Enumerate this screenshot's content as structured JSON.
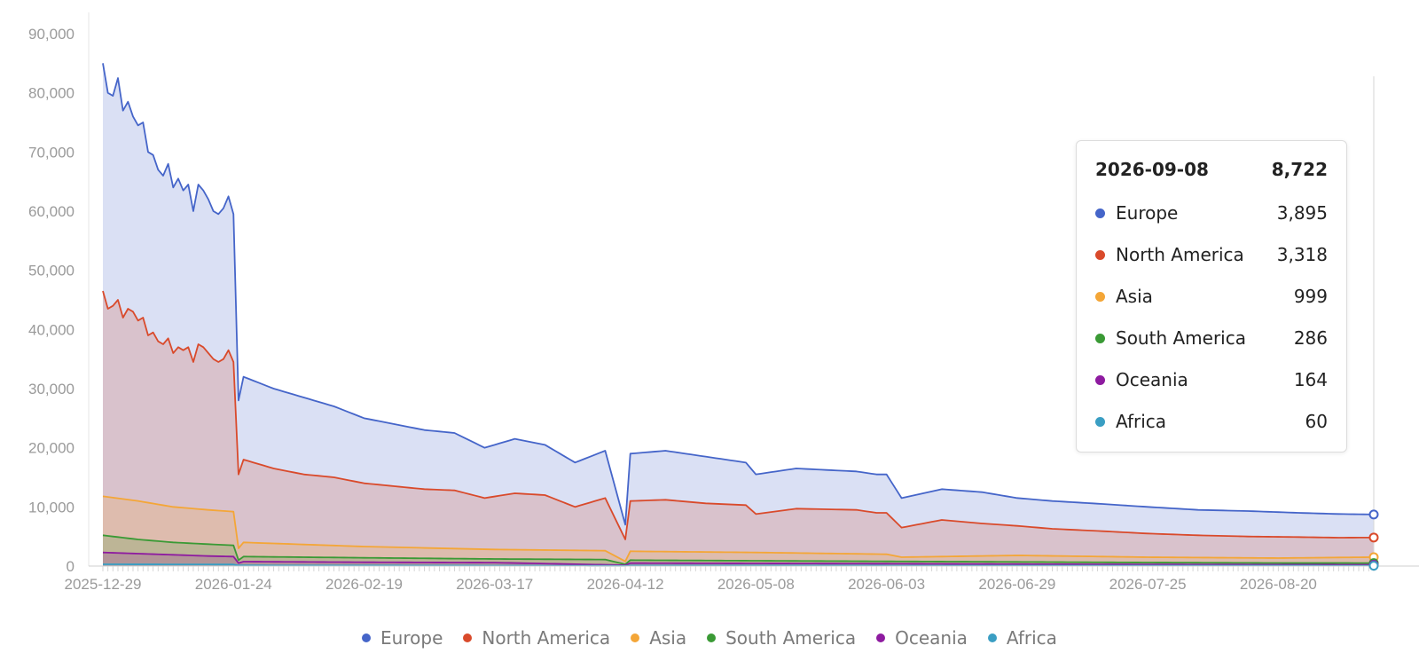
{
  "chart_data": {
    "type": "area",
    "stacked": true,
    "x_ticks": [
      "2025-12-29",
      "2026-01-24",
      "2026-02-19",
      "2026-03-17",
      "2026-04-12",
      "2026-05-08",
      "2026-06-03",
      "2026-06-29",
      "2026-07-25",
      "2026-08-20"
    ],
    "x_range": [
      "2025-12-29",
      "2026-09-08"
    ],
    "y_ticks": [
      "0",
      "10,000",
      "20,000",
      "30,000",
      "40,000",
      "50,000",
      "60,000",
      "70,000",
      "80,000",
      "90,000"
    ],
    "ylim": [
      0,
      90000
    ],
    "grid": false,
    "legend_position": "bottom",
    "series": [
      {
        "name": "Europe",
        "color": "#4565c9",
        "points": [
          [
            "2025-12-29",
            85000
          ],
          [
            "2025-12-30",
            80000
          ],
          [
            "2025-12-31",
            79500
          ],
          [
            "2026-01-01",
            82500
          ],
          [
            "2026-01-02",
            77000
          ],
          [
            "2026-01-03",
            78500
          ],
          [
            "2026-01-04",
            76000
          ],
          [
            "2026-01-05",
            74500
          ],
          [
            "2026-01-06",
            75000
          ],
          [
            "2026-01-07",
            70000
          ],
          [
            "2026-01-08",
            69500
          ],
          [
            "2026-01-09",
            67000
          ],
          [
            "2026-01-10",
            66000
          ],
          [
            "2026-01-11",
            68000
          ],
          [
            "2026-01-12",
            64000
          ],
          [
            "2026-01-13",
            65500
          ],
          [
            "2026-01-14",
            63500
          ],
          [
            "2026-01-15",
            64500
          ],
          [
            "2026-01-16",
            60000
          ],
          [
            "2026-01-17",
            64500
          ],
          [
            "2026-01-18",
            63500
          ],
          [
            "2026-01-19",
            62000
          ],
          [
            "2026-01-20",
            60000
          ],
          [
            "2026-01-21",
            59500
          ],
          [
            "2026-01-22",
            60500
          ],
          [
            "2026-01-23",
            62500
          ],
          [
            "2026-01-24",
            59500
          ],
          [
            "2026-01-25",
            28000
          ],
          [
            "2026-01-26",
            32000
          ],
          [
            "2026-02-01",
            30000
          ],
          [
            "2026-02-07",
            28500
          ],
          [
            "2026-02-13",
            27000
          ],
          [
            "2026-02-19",
            25000
          ],
          [
            "2026-02-25",
            24000
          ],
          [
            "2026-03-03",
            23000
          ],
          [
            "2026-03-09",
            22500
          ],
          [
            "2026-03-15",
            20000
          ],
          [
            "2026-03-21",
            21500
          ],
          [
            "2026-03-27",
            20500
          ],
          [
            "2026-04-02",
            17500
          ],
          [
            "2026-04-08",
            19500
          ],
          [
            "2026-04-12",
            7000
          ],
          [
            "2026-04-13",
            19000
          ],
          [
            "2026-04-20",
            19500
          ],
          [
            "2026-04-28",
            18500
          ],
          [
            "2026-05-06",
            17500
          ],
          [
            "2026-05-08",
            15500
          ],
          [
            "2026-05-16",
            16500
          ],
          [
            "2026-05-28",
            16000
          ],
          [
            "2026-06-01",
            15500
          ],
          [
            "2026-06-03",
            15500
          ],
          [
            "2026-06-06",
            11500
          ],
          [
            "2026-06-14",
            13000
          ],
          [
            "2026-06-22",
            12500
          ],
          [
            "2026-06-29",
            11500
          ],
          [
            "2026-07-06",
            11000
          ],
          [
            "2026-07-16",
            10500
          ],
          [
            "2026-07-25",
            10000
          ],
          [
            "2026-08-04",
            9500
          ],
          [
            "2026-08-14",
            9300
          ],
          [
            "2026-08-24",
            9000
          ],
          [
            "2026-09-01",
            8800
          ],
          [
            "2026-09-08",
            8722
          ]
        ]
      },
      {
        "name": "North America",
        "color": "#d94a2b",
        "points": [
          [
            "2025-12-29",
            46500
          ],
          [
            "2025-12-30",
            43500
          ],
          [
            "2025-12-31",
            44000
          ],
          [
            "2026-01-01",
            45000
          ],
          [
            "2026-01-02",
            42000
          ],
          [
            "2026-01-03",
            43500
          ],
          [
            "2026-01-04",
            43000
          ],
          [
            "2026-01-05",
            41500
          ],
          [
            "2026-01-06",
            42000
          ],
          [
            "2026-01-07",
            39000
          ],
          [
            "2026-01-08",
            39500
          ],
          [
            "2026-01-09",
            38000
          ],
          [
            "2026-01-10",
            37500
          ],
          [
            "2026-01-11",
            38500
          ],
          [
            "2026-01-12",
            36000
          ],
          [
            "2026-01-13",
            37000
          ],
          [
            "2026-01-14",
            36500
          ],
          [
            "2026-01-15",
            37000
          ],
          [
            "2026-01-16",
            34500
          ],
          [
            "2026-01-17",
            37500
          ],
          [
            "2026-01-18",
            37000
          ],
          [
            "2026-01-19",
            36000
          ],
          [
            "2026-01-20",
            35000
          ],
          [
            "2026-01-21",
            34500
          ],
          [
            "2026-01-22",
            35000
          ],
          [
            "2026-01-23",
            36500
          ],
          [
            "2026-01-24",
            34500
          ],
          [
            "2026-01-25",
            15500
          ],
          [
            "2026-01-26",
            18000
          ],
          [
            "2026-02-01",
            16500
          ],
          [
            "2026-02-07",
            15500
          ],
          [
            "2026-02-13",
            15000
          ],
          [
            "2026-02-19",
            14000
          ],
          [
            "2026-02-25",
            13500
          ],
          [
            "2026-03-03",
            13000
          ],
          [
            "2026-03-09",
            12800
          ],
          [
            "2026-03-15",
            11500
          ],
          [
            "2026-03-21",
            12300
          ],
          [
            "2026-03-27",
            12000
          ],
          [
            "2026-04-02",
            10000
          ],
          [
            "2026-04-08",
            11500
          ],
          [
            "2026-04-12",
            4500
          ],
          [
            "2026-04-13",
            11000
          ],
          [
            "2026-04-20",
            11200
          ],
          [
            "2026-04-28",
            10600
          ],
          [
            "2026-05-06",
            10300
          ],
          [
            "2026-05-08",
            8800
          ],
          [
            "2026-05-16",
            9700
          ],
          [
            "2026-05-28",
            9500
          ],
          [
            "2026-06-01",
            9000
          ],
          [
            "2026-06-03",
            9000
          ],
          [
            "2026-06-06",
            6500
          ],
          [
            "2026-06-14",
            7800
          ],
          [
            "2026-06-22",
            7200
          ],
          [
            "2026-06-29",
            6800
          ],
          [
            "2026-07-06",
            6300
          ],
          [
            "2026-07-16",
            5900
          ],
          [
            "2026-07-25",
            5500
          ],
          [
            "2026-08-04",
            5200
          ],
          [
            "2026-08-14",
            5000
          ],
          [
            "2026-08-24",
            4900
          ],
          [
            "2026-09-01",
            4800
          ],
          [
            "2026-09-08",
            4827
          ]
        ]
      },
      {
        "name": "Asia",
        "color": "#f4a637",
        "points": [
          [
            "2025-12-29",
            11800
          ],
          [
            "2026-01-05",
            11000
          ],
          [
            "2026-01-12",
            10000
          ],
          [
            "2026-01-19",
            9500
          ],
          [
            "2026-01-24",
            9200
          ],
          [
            "2026-01-25",
            3000
          ],
          [
            "2026-01-26",
            4000
          ],
          [
            "2026-02-19",
            3300
          ],
          [
            "2026-03-17",
            2800
          ],
          [
            "2026-04-08",
            2600
          ],
          [
            "2026-04-12",
            800
          ],
          [
            "2026-04-13",
            2500
          ],
          [
            "2026-05-08",
            2300
          ],
          [
            "2026-06-03",
            2000
          ],
          [
            "2026-06-06",
            1500
          ],
          [
            "2026-06-29",
            1800
          ],
          [
            "2026-07-25",
            1500
          ],
          [
            "2026-08-20",
            1350
          ],
          [
            "2026-09-08",
            1509
          ]
        ]
      },
      {
        "name": "South America",
        "color": "#3a9a35",
        "points": [
          [
            "2025-12-29",
            5200
          ],
          [
            "2026-01-05",
            4500
          ],
          [
            "2026-01-12",
            4000
          ],
          [
            "2026-01-19",
            3700
          ],
          [
            "2026-01-24",
            3500
          ],
          [
            "2026-01-25",
            1000
          ],
          [
            "2026-01-26",
            1600
          ],
          [
            "2026-02-19",
            1400
          ],
          [
            "2026-03-17",
            1200
          ],
          [
            "2026-04-08",
            1100
          ],
          [
            "2026-04-12",
            300
          ],
          [
            "2026-04-13",
            1000
          ],
          [
            "2026-05-08",
            900
          ],
          [
            "2026-06-03",
            800
          ],
          [
            "2026-06-29",
            700
          ],
          [
            "2026-07-25",
            600
          ],
          [
            "2026-08-20",
            520
          ],
          [
            "2026-09-08",
            510
          ]
        ]
      },
      {
        "name": "Oceania",
        "color": "#8e1ba0",
        "points": [
          [
            "2025-12-29",
            2300
          ],
          [
            "2026-01-05",
            2100
          ],
          [
            "2026-01-12",
            1900
          ],
          [
            "2026-01-19",
            1700
          ],
          [
            "2026-01-24",
            1600
          ],
          [
            "2026-01-25",
            500
          ],
          [
            "2026-01-26",
            750
          ],
          [
            "2026-02-19",
            650
          ],
          [
            "2026-03-17",
            580
          ],
          [
            "2026-04-12",
            150
          ],
          [
            "2026-04-13",
            500
          ],
          [
            "2026-05-08",
            450
          ],
          [
            "2026-06-03",
            400
          ],
          [
            "2026-06-29",
            330
          ],
          [
            "2026-07-25",
            280
          ],
          [
            "2026-08-20",
            240
          ],
          [
            "2026-09-08",
            224
          ]
        ]
      },
      {
        "name": "Africa",
        "color": "#3a9ec3",
        "points": [
          [
            "2025-12-29",
            300
          ],
          [
            "2026-01-24",
            270
          ],
          [
            "2026-01-25",
            120
          ],
          [
            "2026-02-19",
            110
          ],
          [
            "2026-04-12",
            40
          ],
          [
            "2026-04-13",
            95
          ],
          [
            "2026-06-03",
            80
          ],
          [
            "2026-07-25",
            70
          ],
          [
            "2026-09-08",
            60
          ]
        ]
      }
    ],
    "tooltip": {
      "date": "2026-09-08",
      "total": "8,722",
      "rows": [
        {
          "name": "Europe",
          "value": "3,895",
          "color": "#4565c9"
        },
        {
          "name": "North America",
          "value": "3,318",
          "color": "#d94a2b"
        },
        {
          "name": "Asia",
          "value": "999",
          "color": "#f4a637"
        },
        {
          "name": "South America",
          "value": "286",
          "color": "#3a9a35"
        },
        {
          "name": "Oceania",
          "value": "164",
          "color": "#8e1ba0"
        },
        {
          "name": "Africa",
          "value": "60",
          "color": "#3a9ec3"
        }
      ]
    }
  }
}
